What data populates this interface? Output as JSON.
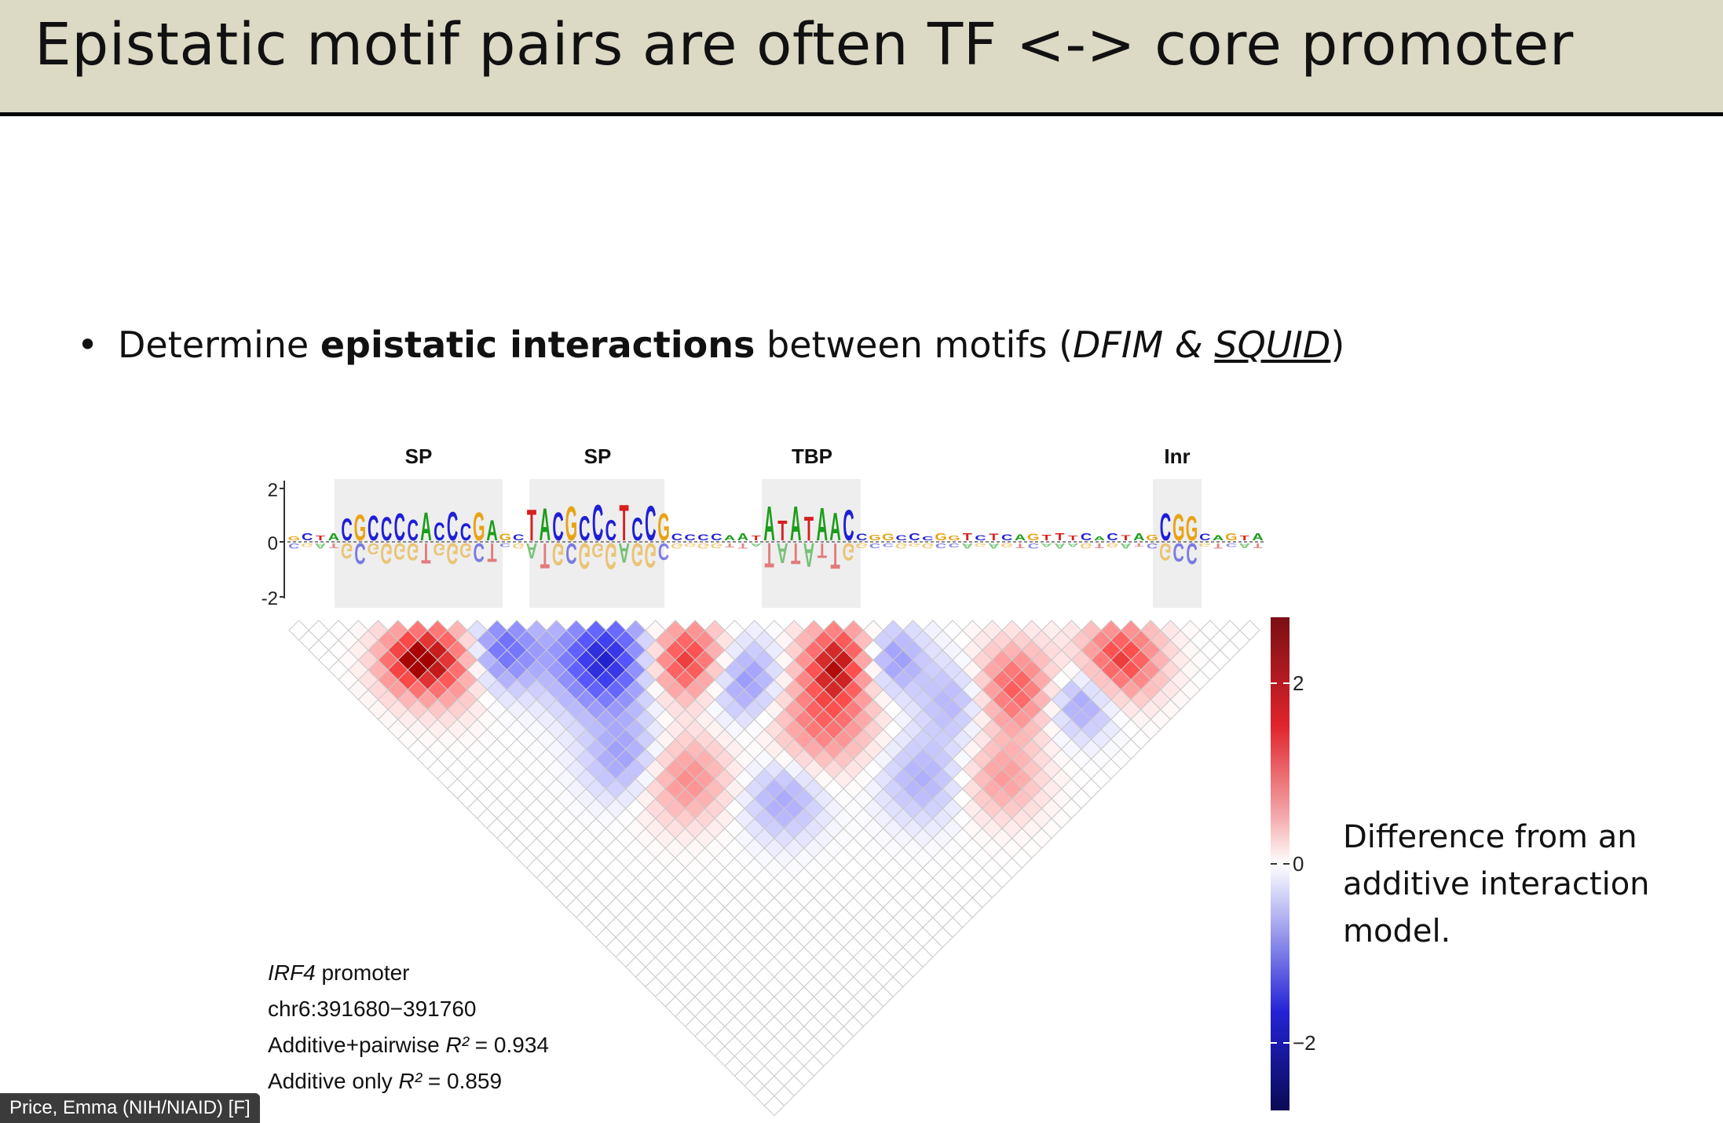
{
  "slide": {
    "title": "Epistatic motif pairs are often TF <-> core promoter",
    "bullet": {
      "prefix": "Determine ",
      "bold": "epistatic interactions",
      "middle": " between motifs (",
      "italic_1": "DFIM & ",
      "italic_underlined": "SQUID",
      "suffix": ")"
    },
    "legend_text": "Difference from an additive interaction model."
  },
  "figure": {
    "motif_labels": [
      "SP",
      "SP",
      "TBP",
      "Inr"
    ],
    "logo_axis_ticks": [
      "2",
      "0",
      "-2"
    ],
    "colorbar_ticks": [
      "2",
      "0",
      "−2"
    ],
    "colorbar_colors": {
      "high": "#7a0f14",
      "mid": "#ffffff",
      "low": "#0a0a55"
    },
    "stats": {
      "gene_italic": "IRF4",
      "gene_suffix": " promoter",
      "region": "chr6:391680−391760",
      "pairwise_prefix": "Additive+pairwise ",
      "pairwise_r2": "R²",
      "pairwise_value": " = 0.934",
      "additive_prefix": "Additive only ",
      "additive_r2": "R²",
      "additive_value": " = 0.859"
    }
  },
  "presenter_tag": "Price, Emma (NIH/NIAID) [F]"
}
